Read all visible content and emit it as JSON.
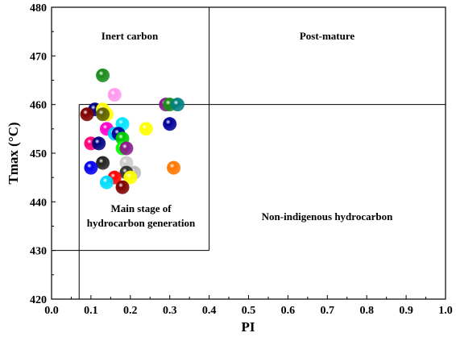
{
  "chart_data": {
    "type": "scatter",
    "xlabel": "PI",
    "ylabel": "Tmax (°C)",
    "xlim": [
      0.0,
      1.0
    ],
    "ylim": [
      420,
      480
    ],
    "xticks": [
      "0.0",
      "0.1",
      "0.2",
      "0.3",
      "0.4",
      "0.5",
      "0.6",
      "0.7",
      "0.8",
      "0.9",
      "1.0"
    ],
    "yticks": [
      "420",
      "430",
      "440",
      "450",
      "460",
      "470",
      "480"
    ],
    "grid": false,
    "regions": [
      {
        "label_lines": [
          "Inert carbon"
        ]
      },
      {
        "label_lines": [
          "Post-mature"
        ]
      },
      {
        "label_lines": [
          "Main stage of",
          "hydrocarbon generation"
        ]
      },
      {
        "label_lines": [
          "Non-indigenous hydrocarbon"
        ]
      }
    ],
    "boundary_lines": [
      {
        "axis": "x",
        "value": 0.07,
        "from": 420,
        "to": 460
      },
      {
        "axis": "x",
        "value": 0.4,
        "from": 430,
        "to": 480
      },
      {
        "axis": "y",
        "value": 460,
        "from": 0.07,
        "to": 1.0
      },
      {
        "axis": "y",
        "value": 430,
        "from": 0.0,
        "to": 0.4
      }
    ],
    "points": [
      {
        "x": 0.13,
        "y": 466,
        "color": "#1a8c1a"
      },
      {
        "x": 0.16,
        "y": 462,
        "color": "#ff99ee"
      },
      {
        "x": 0.29,
        "y": 460,
        "color": "#8b1a8b"
      },
      {
        "x": 0.3,
        "y": 460,
        "color": "#1a8c1a"
      },
      {
        "x": 0.32,
        "y": 460,
        "color": "#008080"
      },
      {
        "x": 0.11,
        "y": 459,
        "color": "#000080"
      },
      {
        "x": 0.13,
        "y": 459,
        "color": "#ffff00"
      },
      {
        "x": 0.09,
        "y": 458,
        "color": "#800000"
      },
      {
        "x": 0.14,
        "y": 458,
        "color": "#ffff00"
      },
      {
        "x": 0.13,
        "y": 458,
        "color": "#606000"
      },
      {
        "x": 0.18,
        "y": 456,
        "color": "#00e5ff"
      },
      {
        "x": 0.3,
        "y": 456,
        "color": "#000099"
      },
      {
        "x": 0.24,
        "y": 455,
        "color": "#ffff00"
      },
      {
        "x": 0.14,
        "y": 455,
        "color": "#ff00cc"
      },
      {
        "x": 0.16,
        "y": 454,
        "color": "#00ccff"
      },
      {
        "x": 0.17,
        "y": 454,
        "color": "#000099"
      },
      {
        "x": 0.18,
        "y": 453,
        "color": "#00cc00"
      },
      {
        "x": 0.1,
        "y": 452,
        "color": "#ff0077"
      },
      {
        "x": 0.12,
        "y": 452,
        "color": "#000080"
      },
      {
        "x": 0.18,
        "y": 451,
        "color": "#00ff00"
      },
      {
        "x": 0.19,
        "y": 451,
        "color": "#8b1a8b"
      },
      {
        "x": 0.13,
        "y": 448,
        "color": "#222222"
      },
      {
        "x": 0.19,
        "y": 448,
        "color": "#cccccc"
      },
      {
        "x": 0.1,
        "y": 447,
        "color": "#0000ee"
      },
      {
        "x": 0.31,
        "y": 447,
        "color": "#ff7700"
      },
      {
        "x": 0.21,
        "y": 446,
        "color": "#bbbbbb"
      },
      {
        "x": 0.19,
        "y": 446,
        "color": "#333333"
      },
      {
        "x": 0.16,
        "y": 445,
        "color": "#ff0000"
      },
      {
        "x": 0.2,
        "y": 445,
        "color": "#ffff00"
      },
      {
        "x": 0.14,
        "y": 444,
        "color": "#00ddff"
      },
      {
        "x": 0.18,
        "y": 443,
        "color": "#800000"
      }
    ]
  }
}
